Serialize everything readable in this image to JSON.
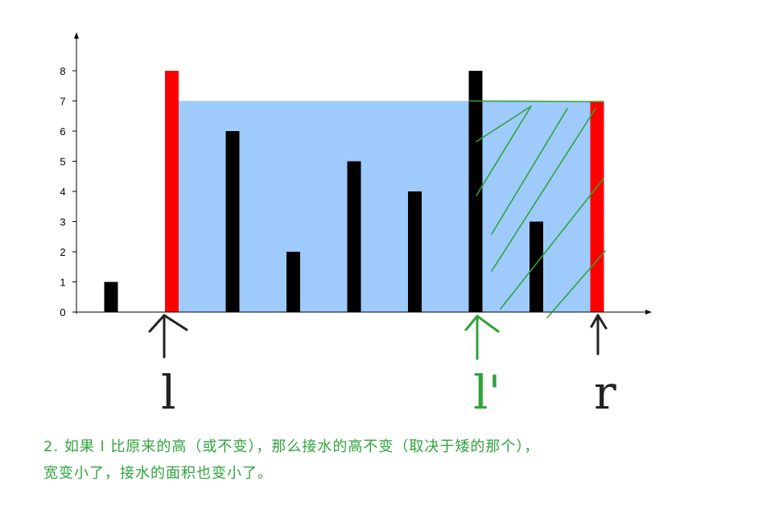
{
  "chart_data": {
    "type": "bar",
    "values": [
      1,
      8,
      6,
      2,
      5,
      4,
      8,
      3,
      7
    ],
    "highlight": {
      "left_index": 1,
      "right_index": 8,
      "moved_index": 6
    },
    "water_level": 7,
    "ylim": [
      0,
      9
    ],
    "yticks": [
      "0",
      "1",
      "2",
      "3",
      "4",
      "5",
      "6",
      "7",
      "8"
    ],
    "colors": {
      "bar": "#000000",
      "pointer_bar": "#ff0000",
      "water": "#9ecbfb",
      "hatch": "#2fa33b",
      "left_arrow": "#222222",
      "moved_arrow": "#2fa33b",
      "right_arrow": "#222222"
    }
  },
  "labels": {
    "left_pointer": "l",
    "moved_pointer": "l'",
    "right_pointer": "r"
  },
  "annotation": {
    "line1": "2. 如果 l 比原来的高（或不变），那么接水的高不变（取决于矮的那个），",
    "line2": "宽变小了，接水的面积也变小了。"
  }
}
